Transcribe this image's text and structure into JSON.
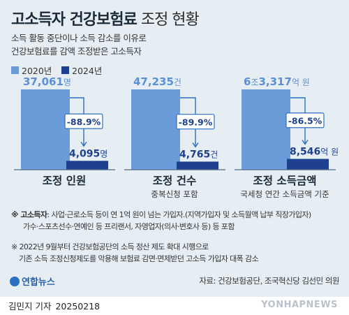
{
  "header": {
    "title_bold": "고소득자 건강보험료",
    "title_light": "조정 현황",
    "subtitle_line1": "소득 활동 중단이나 소득 감소를 이유로",
    "subtitle_line2": "건강보험료를 감액 조정받은 고소득자"
  },
  "legend": {
    "items": [
      {
        "label": "2020년",
        "color": "#6b9bd8"
      },
      {
        "label": "2024년",
        "color": "#1f3f8f"
      }
    ]
  },
  "colors": {
    "bar_2020": "#6b9bd8",
    "bar_2024": "#1f3f8f",
    "arrow": "#2b6fc2",
    "value_2020": "#5b8fd6",
    "value_2024": "#1f3f8f"
  },
  "chart_data": [
    {
      "type": "bar",
      "title": "조정 인원",
      "subtitle": "",
      "categories": [
        "2020년",
        "2024년"
      ],
      "values": [
        37061,
        4095
      ],
      "value_labels": [
        {
          "num": "37,061",
          "unit": "명"
        },
        {
          "num": "4,095",
          "unit": "명"
        }
      ],
      "change_label": "-88.9%"
    },
    {
      "type": "bar",
      "title": "조정 건수",
      "subtitle": "중복신청 포함",
      "categories": [
        "2020년",
        "2024년"
      ],
      "values": [
        47235,
        4765
      ],
      "value_labels": [
        {
          "num": "47,235",
          "unit": "건"
        },
        {
          "num": "4,765",
          "unit": "건"
        }
      ],
      "change_label": "-89.9%"
    },
    {
      "type": "bar",
      "title": "조정 소득금액",
      "subtitle": "국세청 연간 소득금액 기준",
      "categories": [
        "2020년",
        "2024년"
      ],
      "values": [
        63317,
        8546
      ],
      "value_labels": [
        {
          "num": "6",
          "unit": "조",
          "num2": "3,317",
          "unit2": "억 원"
        },
        {
          "num": "8,546",
          "unit": "억 원"
        }
      ],
      "change_label": "-86.5%"
    }
  ],
  "footnotes": {
    "note1_label": "※ 고소득자",
    "note1_text": ": 사업·근로소득 등이 연 1억 원이 넘는 가입자.(지역가입자 및 소득월액 납부 직장가입자)",
    "note1_text2": "가수·스포츠선수·연예인 등 프리랜서, 자영업자(의사·변호사 등) 등 포함",
    "note2_line1": "※ 2022년 9월부터 건강보험공단의 소득 정산 제도 확대 시행으로",
    "note2_line2": "기존 소득 조정신청제도를 악용해 보험료 감면·면제받던 고소득 가입자 대폭 감소"
  },
  "source": "자료: 건강보험공단, 조국혁신당 김선민 의원",
  "logo_text": "연합뉴스",
  "credit": {
    "author": "김민지 기자",
    "date": "20250218"
  },
  "watermark": "YONHAPNEWS"
}
